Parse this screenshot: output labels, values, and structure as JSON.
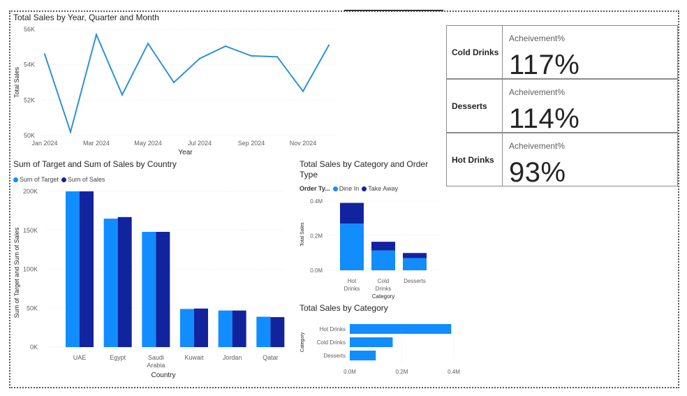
{
  "line_chart": {
    "title": "Total Sales by Year, Quarter and Month",
    "chart_data": {
      "type": "line",
      "title": "Total Sales by Year, Quarter and Month",
      "xlabel": "Year",
      "ylabel": "Total Sales",
      "x": [
        "Jan 2024",
        "Feb 2024",
        "Mar 2024",
        "Apr 2024",
        "May 2024",
        "Jun 2024",
        "Jul 2024",
        "Aug 2024",
        "Sep 2024",
        "Oct 2024",
        "Nov 2024",
        "Dec 2024"
      ],
      "values": [
        54600,
        50200,
        55700,
        52300,
        55200,
        53000,
        54350,
        55050,
        54500,
        54450,
        52500,
        55100
      ],
      "ylim": [
        50000,
        56000
      ],
      "yticks": [
        "50K",
        "52K",
        "54K",
        "56K"
      ],
      "xticks": [
        "Jan 2024",
        "Mar 2024",
        "May 2024",
        "Jul 2024",
        "Sep 2024",
        "Nov 2024"
      ],
      "color": "#2b93d6"
    }
  },
  "bar_chart": {
    "title": "Sum of Target and Sum of Sales by Country",
    "legend": [
      "Sum of Target",
      "Sum of Sales"
    ],
    "chart_data": {
      "type": "bar",
      "title": "Sum of Target and Sum of Sales by Country",
      "xlabel": "Country",
      "ylabel": "Sum of Target and Sum of Sales",
      "categories": [
        "UAE",
        "Egypt",
        "Saudi Arabia",
        "Kuwait",
        "Jordan",
        "Qatar"
      ],
      "category_lines": [
        [
          "UAE"
        ],
        [
          "Egypt"
        ],
        [
          "Saudi",
          "Arabia"
        ],
        [
          "Kuwait"
        ],
        [
          "Jordan"
        ],
        [
          "Qatar"
        ]
      ],
      "series": [
        {
          "name": "Sum of Target",
          "values": [
            200000,
            165000,
            148000,
            49000,
            47000,
            39000
          ],
          "color": "#118dff"
        },
        {
          "name": "Sum of Sales",
          "values": [
            200000,
            167000,
            148000,
            49500,
            47000,
            38500
          ],
          "color": "#12239e"
        }
      ],
      "ylim": [
        0,
        200000
      ],
      "yticks": [
        "0K",
        "50K",
        "100K",
        "150K",
        "200K"
      ]
    }
  },
  "stacked_chart": {
    "title": "Total Sales by Category and Order Type",
    "legend_title": "Order Ty...",
    "legend": [
      "Dine In",
      "Take Away"
    ],
    "chart_data": {
      "type": "bar",
      "stacked": true,
      "title": "Total Sales by Category and Order Type",
      "xlabel": "Category",
      "ylabel": "Total Sales",
      "categories": [
        "Hot Drinks",
        "Cold Drinks",
        "Desserts"
      ],
      "category_lines": [
        [
          "Hot",
          "Drinks"
        ],
        [
          "Cold",
          "Drinks"
        ],
        [
          "Desserts"
        ]
      ],
      "series": [
        {
          "name": "Dine In",
          "values": [
            0.27,
            0.115,
            0.07
          ],
          "color": "#118dff"
        },
        {
          "name": "Take Away",
          "values": [
            0.12,
            0.05,
            0.03
          ],
          "color": "#12239e"
        }
      ],
      "units": "M",
      "ylim": [
        0,
        0.4
      ],
      "yticks": [
        "0.0M",
        "0.2M",
        "0.4M"
      ]
    }
  },
  "hbar_chart": {
    "title": "Total Sales by Category",
    "chart_data": {
      "type": "bar",
      "orientation": "horizontal",
      "title": "Total Sales by Category",
      "ylabel": "Category",
      "categories": [
        "Hot Drinks",
        "Cold Drinks",
        "Desserts"
      ],
      "values": [
        0.39,
        0.165,
        0.1
      ],
      "units": "M",
      "xlim": [
        0,
        0.4
      ],
      "xticks": [
        "0.0M",
        "0.2M",
        "0.4M"
      ],
      "color": "#118dff"
    }
  },
  "kpis": [
    {
      "category": "Cold Drinks",
      "label": "Acheivement%",
      "value": "117%"
    },
    {
      "category": "Desserts",
      "label": "Acheivement%",
      "value": "114%"
    },
    {
      "category": "Hot Drinks",
      "label": "Acheivement%",
      "value": "93%"
    }
  ]
}
